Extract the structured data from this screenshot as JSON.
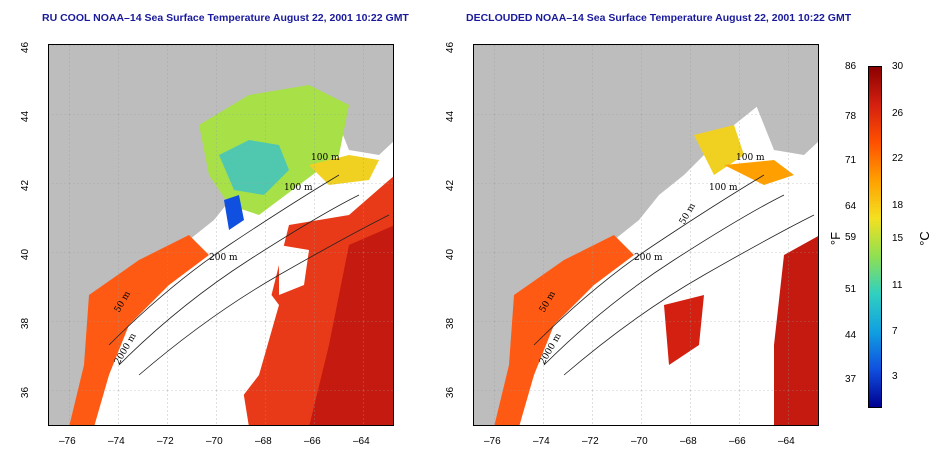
{
  "left_panel": {
    "title": "RU COOL NOAA–14 Sea Surface Temperature August 22, 2001 10:22 GMT"
  },
  "right_panel": {
    "title": "DECLOUDED NOAA–14 Sea Surface Temperature August 22, 2001 10:22 GMT"
  },
  "lat_ticks": [
    "46",
    "44",
    "42",
    "40",
    "38",
    "36"
  ],
  "lon_ticks": [
    "–76",
    "–74",
    "–72",
    "–70",
    "–68",
    "–66",
    "–64"
  ],
  "contour_labels": {
    "m100a": "100 m",
    "m100b": "100 m",
    "m50a": "50 m",
    "m200": "200 m",
    "m50b": "50 m",
    "m200b": "2000 m"
  },
  "colorbar": {
    "fahrenheit_ticks": [
      "86",
      "78",
      "71",
      "64",
      "59",
      "51",
      "44",
      "37"
    ],
    "celsius_ticks": [
      "30",
      "26",
      "22",
      "18",
      "15",
      "11",
      "7",
      "3"
    ],
    "fahrenheit_unit": "°F",
    "celsius_unit": "°C",
    "colors": [
      "#8b0000",
      "#d42010",
      "#ff5000",
      "#ffa000",
      "#f4e020",
      "#90e050",
      "#30d0c0",
      "#10a0e0",
      "#1050e0",
      "#000090"
    ]
  }
}
